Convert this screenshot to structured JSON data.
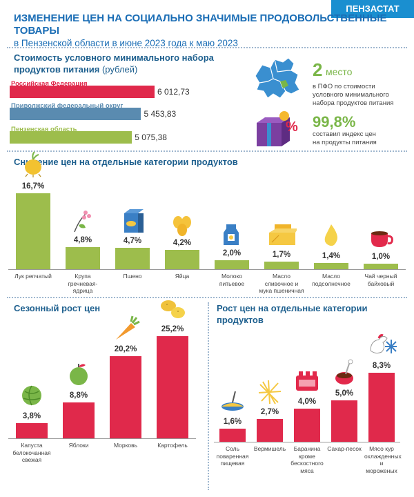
{
  "brand": "ПЕНЗАСТАТ",
  "header": {
    "title": "ИЗМЕНЕНИЕ ЦЕН НА СОЦИАЛЬНО ЗНАЧИМЫЕ ПРОДОВОЛЬСТВЕННЫЕ ТОВАРЫ",
    "subtitle": "в Пензенской области в июне 2023 года к маю 2023"
  },
  "min_set": {
    "title_line1": "Стоимость условного минимального набора",
    "title_line2": "продуктов питания",
    "title_unit": "(рублей)"
  },
  "info": {
    "place_num": "2",
    "place_word": "место",
    "place_text": [
      "в ПФО по стоимости",
      "условного минимального",
      "набора продуктов питания"
    ],
    "index_value": "99,8%",
    "index_text": [
      "составил индекс цен",
      "на продукты питания"
    ]
  },
  "sections": {
    "decrease": "Снижение цен на отдельные категории продуктов",
    "seasonal": "Сезонный рост цен",
    "increase": "Рост цен на отдельные категории продуктов"
  },
  "colors": {
    "red": "#e0294b",
    "blue": "#5a8bb0",
    "green": "#9dbd4c",
    "brand": "#1a8fd0",
    "title": "#1a6db5"
  },
  "chart_data": [
    {
      "type": "bar",
      "orientation": "horizontal",
      "categories": [
        "Российская Федерация",
        "Приволжский федеральный округ",
        "Пензенская область"
      ],
      "values": [
        6012.73,
        5453.83,
        5075.38
      ],
      "value_labels": [
        "6 012,73",
        "5 453,83",
        "5 075,38"
      ],
      "title": "Стоимость условного минимального набора продуктов питания (рублей)"
    },
    {
      "type": "bar",
      "title": "Снижение цен на отдельные категории продуктов",
      "categories": [
        "Лук репчатый",
        "Крупа гречневая-ядрица",
        "Пшено",
        "Яйца",
        "Молоко питьевое",
        "Масло сливочное и мука пшеничная",
        "Масло подсолнечное",
        "Чай черный байховый"
      ],
      "values": [
        16.7,
        4.8,
        4.7,
        4.2,
        2.0,
        1.7,
        1.4,
        1.0
      ],
      "value_labels": [
        "16,7%",
        "4,8%",
        "4,7%",
        "4,2%",
        "2,0%",
        "1,7%",
        "1,4%",
        "1,0%"
      ],
      "icons": [
        "onion-icon",
        "buckwheat-icon",
        "millet-icon",
        "eggs-icon",
        "milk-icon",
        "butter-flour-icon",
        "oil-drop-icon",
        "tea-cup-icon"
      ]
    },
    {
      "type": "bar",
      "title": "Сезонный рост цен",
      "categories": [
        "Капуста белокочанная свежая",
        "Яблоки",
        "Морковь",
        "Картофель"
      ],
      "values": [
        3.8,
        8.8,
        20.2,
        25.2
      ],
      "value_labels": [
        "3,8%",
        "8,8%",
        "20,2%",
        "25,2%"
      ],
      "icons": [
        "cabbage-icon",
        "apple-icon",
        "carrot-icon",
        "potato-icon"
      ]
    },
    {
      "type": "bar",
      "title": "Рост цен на отдельные категории продуктов",
      "categories": [
        "Соль поваренная пищевая",
        "Вермишель",
        "Баранина кроме бескостного мяса",
        "Сахар-песок",
        "Мясо кур охлажденных и мороженых"
      ],
      "values": [
        1.6,
        2.7,
        4.0,
        5.0,
        8.3
      ],
      "value_labels": [
        "1,6%",
        "2,7%",
        "4,0%",
        "5,0%",
        "8,3%"
      ],
      "icons": [
        "salt-icon",
        "pasta-icon",
        "mutton-icon",
        "sugar-icon",
        "chicken-snow-icon"
      ]
    }
  ]
}
